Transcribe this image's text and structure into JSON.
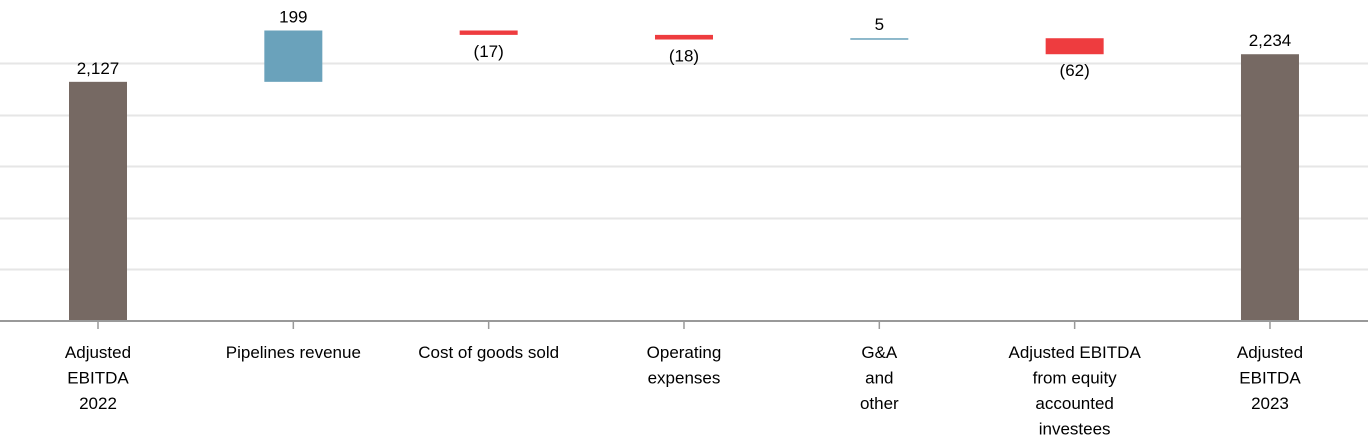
{
  "chart_data": {
    "type": "bar",
    "subtype": "waterfall",
    "title": "",
    "xlabel": "",
    "ylabel": "",
    "ylim": [
      1200,
      2280
    ],
    "grid": true,
    "categories": [
      [
        "Adjusted",
        "EBITDA",
        "2022"
      ],
      [
        "Pipelines revenue"
      ],
      [
        "Cost of goods sold"
      ],
      [
        "Operating",
        "expenses"
      ],
      [
        "G&A",
        "and",
        "other"
      ],
      [
        "Adjusted EBITDA",
        "from equity",
        "accounted",
        "investees"
      ],
      [
        "Adjusted",
        "EBITDA",
        "2023"
      ]
    ],
    "values": [
      2127,
      199,
      -17,
      -18,
      5,
      -62,
      2234
    ],
    "kinds": [
      "total",
      "delta",
      "delta",
      "delta",
      "delta",
      "delta",
      "total"
    ],
    "value_labels": [
      "2,127",
      "199",
      "(17)",
      "(18)",
      "5",
      "(62)",
      "2,234"
    ],
    "colors": {
      "total": "#766963",
      "increase": "#6aa2bb",
      "decrease": "#ee3c3f",
      "grid": "#e6e6e6",
      "axis": "#999999"
    }
  }
}
